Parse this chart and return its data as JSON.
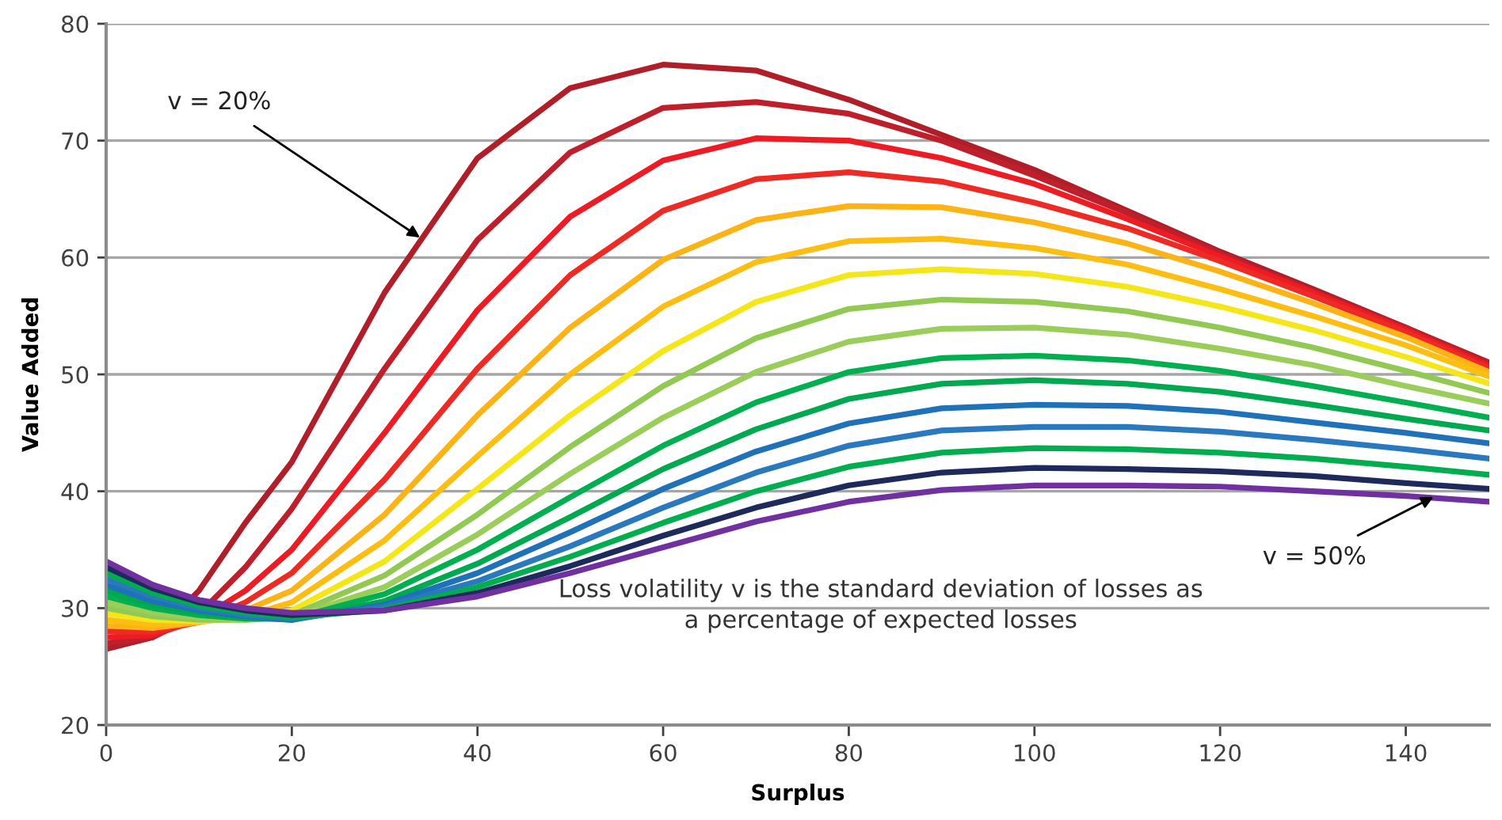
{
  "chart_data": {
    "type": "line",
    "xlabel": "Surplus",
    "ylabel": "Value Added",
    "x": [
      0,
      5,
      10,
      15,
      20,
      30,
      40,
      50,
      60,
      70,
      80,
      90,
      100,
      110,
      120,
      130,
      140,
      149
    ],
    "xlim": [
      0,
      149
    ],
    "xticks": [
      0,
      20,
      40,
      60,
      80,
      100,
      120,
      140
    ],
    "ylim": [
      20,
      80
    ],
    "yticks": [
      20,
      30,
      40,
      50,
      60,
      70,
      80
    ],
    "grid": "y",
    "legend": false,
    "marker": "none",
    "line_style": "solid",
    "series": [
      {
        "color": "#b01f29",
        "values": [
          26.5,
          27.5,
          31.5,
          37.3,
          42.5,
          57,
          68.5,
          74.5,
          76.5,
          76,
          73.5,
          70.5,
          67.5,
          64,
          60.5,
          57.3,
          54,
          51
        ]
      },
      {
        "color": "#bf1f2b",
        "values": [
          27,
          27.5,
          29.5,
          33.5,
          38.5,
          50.5,
          61.5,
          69,
          72.8,
          73.3,
          72.3,
          70,
          67,
          63.8,
          60.3,
          57.1,
          54,
          50.9
        ]
      },
      {
        "color": "#ed1c24",
        "values": [
          27.5,
          27.7,
          29,
          31.5,
          35,
          45,
          55.5,
          63.5,
          68.3,
          70.2,
          70,
          68.5,
          66.3,
          63.3,
          60.1,
          57,
          53.8,
          50.7
        ]
      },
      {
        "color": "#ee2a24",
        "values": [
          28,
          28,
          28.8,
          30.5,
          33,
          41,
          50.5,
          58.5,
          64,
          66.7,
          67.3,
          66.5,
          64.7,
          62.5,
          59.7,
          56.7,
          53.6,
          50.5
        ]
      },
      {
        "color": "#fcb316",
        "values": [
          28.5,
          28.3,
          28.8,
          29.8,
          31.5,
          38,
          46.5,
          54,
          59.8,
          63.2,
          64.4,
          64.3,
          63,
          61.2,
          58.8,
          56.1,
          53.2,
          50.2
        ]
      },
      {
        "color": "#fdbe14",
        "values": [
          29,
          28.6,
          28.8,
          29.3,
          30.5,
          35.8,
          43,
          50,
          55.8,
          59.6,
          61.4,
          61.6,
          60.8,
          59.4,
          57.3,
          55,
          52.5,
          49.8
        ]
      },
      {
        "color": "#f5e61a",
        "values": [
          29.5,
          29,
          28.9,
          29.1,
          29.8,
          34,
          40.2,
          46.5,
          52,
          56.2,
          58.5,
          59,
          58.6,
          57.5,
          55.8,
          53.8,
          51.5,
          49.2
        ]
      },
      {
        "color": "#92c952",
        "values": [
          30,
          29.3,
          29,
          29,
          29.4,
          32.8,
          38,
          43.8,
          49,
          53.1,
          55.6,
          56.4,
          56.2,
          55.4,
          54,
          52.3,
          50.3,
          48.4
        ]
      },
      {
        "color": "#9acd5a",
        "values": [
          30.5,
          29.6,
          29.2,
          29,
          29.2,
          31.8,
          36.3,
          41.5,
          46.3,
          50.2,
          52.8,
          53.9,
          54,
          53.4,
          52.2,
          50.8,
          49,
          47.5
        ]
      },
      {
        "color": "#00b050",
        "values": [
          31,
          30,
          29.4,
          29.1,
          29.1,
          31.2,
          35,
          39.5,
          43.9,
          47.6,
          50.2,
          51.4,
          51.6,
          51.2,
          50.3,
          49,
          47.6,
          46.3
        ]
      },
      {
        "color": "#00a84f",
        "values": [
          31.5,
          30.3,
          29.6,
          29.2,
          29,
          30.6,
          33.8,
          37.8,
          41.9,
          45.3,
          47.9,
          49.2,
          49.5,
          49.2,
          48.5,
          47.4,
          46.2,
          45.2
        ]
      },
      {
        "color": "#1f72b8",
        "values": [
          32,
          30.6,
          29.8,
          29.3,
          29,
          30.3,
          33,
          36.5,
          40.2,
          43.4,
          45.8,
          47.1,
          47.4,
          47.3,
          46.8,
          45.9,
          45,
          44.1
        ]
      },
      {
        "color": "#2a78bd",
        "values": [
          32.5,
          31,
          30,
          29.4,
          29.1,
          30.1,
          32.3,
          35.3,
          38.6,
          41.6,
          43.9,
          45.2,
          45.5,
          45.5,
          45.1,
          44.4,
          43.6,
          42.8
        ]
      },
      {
        "color": "#00ae4f",
        "values": [
          33,
          31.3,
          30.2,
          29.6,
          29.2,
          29.9,
          31.8,
          34.4,
          37.3,
          40,
          42.1,
          43.3,
          43.7,
          43.6,
          43.3,
          42.8,
          42.1,
          41.4
        ]
      },
      {
        "color": "#1f2a5c",
        "values": [
          33.5,
          31.7,
          30.5,
          29.8,
          29.4,
          29.8,
          31.3,
          33.6,
          36.2,
          38.6,
          40.5,
          41.6,
          42,
          41.9,
          41.7,
          41.3,
          40.7,
          40.2
        ]
      },
      {
        "color": "#7030a0",
        "values": [
          34,
          32,
          30.7,
          30,
          29.6,
          29.8,
          31,
          33,
          35.2,
          37.4,
          39.1,
          40.1,
          40.5,
          40.5,
          40.4,
          40,
          39.6,
          39.1
        ]
      }
    ],
    "annotations": [
      {
        "text": "v = 20%",
        "x": 34,
        "y": 61.6
      },
      {
        "text": "v = 50%",
        "x": 143.2,
        "y": 39.6
      },
      "Loss volatility v is the standard deviation of losses as\na percentage of expected losses"
    ]
  }
}
